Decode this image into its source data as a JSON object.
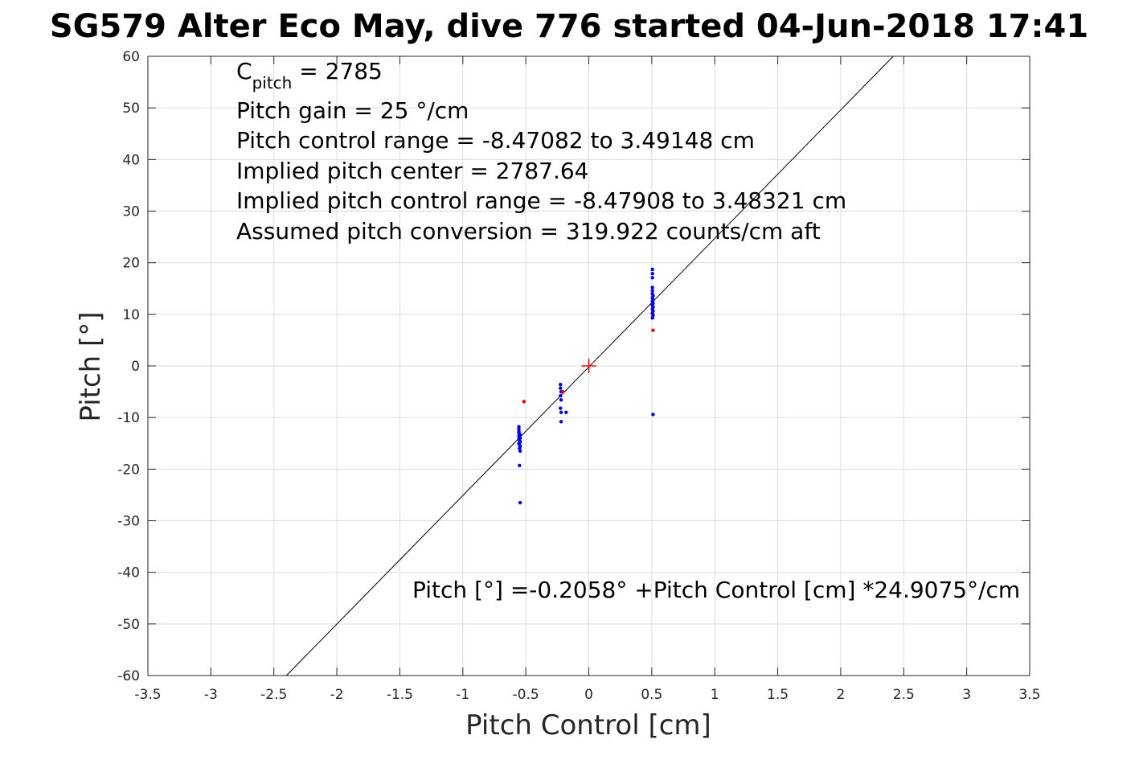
{
  "chart_data": {
    "type": "scatter",
    "title": "SG579 Alter Eco May, dive 776 started 04-Jun-2018 17:41",
    "xlabel": "Pitch Control [cm]",
    "ylabel": "Pitch [°]",
    "xlim": [
      -3.5,
      3.5
    ],
    "ylim": [
      -60,
      60
    ],
    "xticks": [
      -3.5,
      -3,
      -2.5,
      -2,
      -1.5,
      -1,
      -0.5,
      0,
      0.5,
      1,
      1.5,
      2,
      2.5,
      3,
      3.5
    ],
    "xtick_labels": [
      "-3.5",
      "-3",
      "-2.5",
      "-2",
      "-1.5",
      "-1",
      "-0.5",
      "0",
      "0.5",
      "1",
      "1.5",
      "2",
      "2.5",
      "3",
      "3.5"
    ],
    "yticks": [
      -60,
      -50,
      -40,
      -30,
      -20,
      -10,
      0,
      10,
      20,
      30,
      40,
      50,
      60
    ],
    "ytick_labels": [
      "-60",
      "-50",
      "-40",
      "-30",
      "-20",
      "-10",
      "0",
      "10",
      "20",
      "30",
      "40",
      "50",
      "60"
    ],
    "grid": true,
    "annotations": {
      "c_pitch_main": "C",
      "c_pitch_sub": "pitch",
      "c_pitch_value": " = 2785",
      "lines": [
        "Pitch gain = 25 °/cm",
        "Pitch control range = -8.47082 to 3.49148 cm",
        "Implied pitch center = 2787.64",
        "Implied pitch control range = -8.47908 to 3.48321 cm",
        "Assumed pitch conversion = 319.922 counts/cm aft"
      ],
      "fit_equation": "Pitch [°] =-0.2058° +Pitch Control [cm] *24.9075°/cm"
    },
    "fit_line": {
      "intercept": -0.2058,
      "slope": 24.9075,
      "color": "#000000"
    },
    "center_marker": {
      "x": 0,
      "y": 0,
      "color": "#ff0000"
    },
    "series": [
      {
        "color": "#0000ff",
        "points": [
          [
            -0.555,
            -11.8
          ],
          [
            -0.555,
            -12.3
          ],
          [
            -0.555,
            -12.7
          ],
          [
            -0.555,
            -13.0
          ],
          [
            -0.55,
            -13.2
          ],
          [
            -0.545,
            -13.4
          ],
          [
            -0.555,
            -13.6
          ],
          [
            -0.55,
            -13.8
          ],
          [
            -0.545,
            -14.0
          ],
          [
            -0.555,
            -14.2
          ],
          [
            -0.55,
            -14.4
          ],
          [
            -0.545,
            -14.7
          ],
          [
            -0.555,
            -15.0
          ],
          [
            -0.55,
            -15.3
          ],
          [
            -0.545,
            -15.6
          ],
          [
            -0.55,
            -16.0
          ],
          [
            -0.545,
            -16.5
          ],
          [
            -0.55,
            -19.3
          ],
          [
            -0.545,
            -26.5
          ],
          [
            -0.225,
            -3.6
          ],
          [
            -0.225,
            -4.3
          ],
          [
            -0.22,
            -5.0
          ],
          [
            -0.225,
            -5.8
          ],
          [
            -0.22,
            -6.6
          ],
          [
            -0.225,
            -8.2
          ],
          [
            -0.22,
            -9.0
          ],
          [
            -0.18,
            -9.0
          ],
          [
            -0.22,
            -10.8
          ],
          [
            0.505,
            18.7
          ],
          [
            0.505,
            17.9
          ],
          [
            0.505,
            17.1
          ],
          [
            0.505,
            15.2
          ],
          [
            0.505,
            14.6
          ],
          [
            0.505,
            14.0
          ],
          [
            0.51,
            13.6
          ],
          [
            0.505,
            13.2
          ],
          [
            0.51,
            12.8
          ],
          [
            0.505,
            12.5
          ],
          [
            0.51,
            12.1
          ],
          [
            0.505,
            11.8
          ],
          [
            0.51,
            11.4
          ],
          [
            0.505,
            11.0
          ],
          [
            0.51,
            10.6
          ],
          [
            0.505,
            10.2
          ],
          [
            0.51,
            9.8
          ],
          [
            0.505,
            9.3
          ],
          [
            0.51,
            -9.4
          ]
        ]
      },
      {
        "color": "#ff0000",
        "points": [
          [
            -0.515,
            -6.9
          ],
          [
            -0.205,
            -5.0
          ],
          [
            0.51,
            6.9
          ]
        ]
      }
    ]
  }
}
